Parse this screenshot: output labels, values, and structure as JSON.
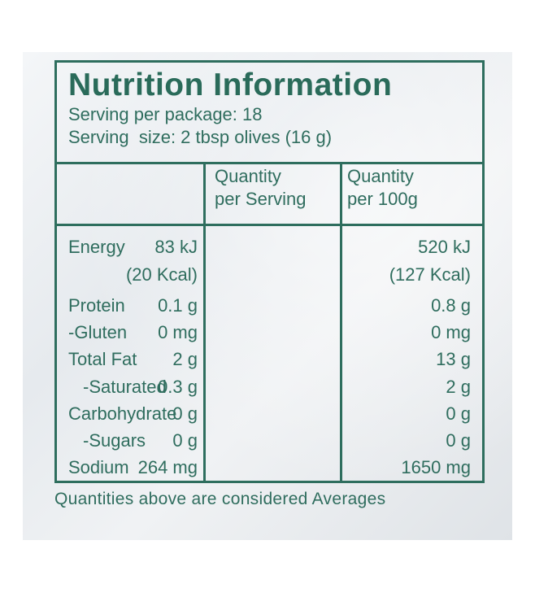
{
  "panel": {
    "title": "Nutrition Information",
    "servings_per_package": "Serving per package: 18",
    "serving_size": "Serving  size: 2 tbsp olives (16 g)"
  },
  "columns": {
    "per_serving_line1": "Quantity",
    "per_serving_line2": "per Serving",
    "per_100g_line1": "Quantity",
    "per_100g_line2": "per 100g"
  },
  "rows": [
    {
      "name": "Energy",
      "per_serving": "83 kJ",
      "per_100g": "520 kJ",
      "indent": false
    },
    {
      "name": "",
      "per_serving": "(20 Kcal)",
      "per_100g": "(127 Kcal)",
      "indent": false
    },
    {
      "name": "Protein",
      "per_serving": "0.1 g",
      "per_100g": "0.8 g",
      "indent": false
    },
    {
      "name": "-Gluten",
      "per_serving": "0 mg",
      "per_100g": "0 mg",
      "indent": false
    },
    {
      "name": "Total Fat",
      "per_serving": "2 g",
      "per_100g": "13 g",
      "indent": false
    },
    {
      "name": "-Saturated",
      "per_serving": "0.3 g",
      "per_100g": "2 g",
      "indent": true
    },
    {
      "name": "Carbohydrate",
      "per_serving": "0 g",
      "per_100g": "0 g",
      "indent": false
    },
    {
      "name": "-Sugars",
      "per_serving": "0 g",
      "per_100g": "0 g",
      "indent": true
    },
    {
      "name": "Sodium",
      "per_serving": "264 mg",
      "per_100g": "1650 mg",
      "indent": false
    }
  ],
  "footer": "Quantities above are considered Averages",
  "colors": {
    "ink": "#2f6d5e",
    "background": "#e6eaee"
  }
}
